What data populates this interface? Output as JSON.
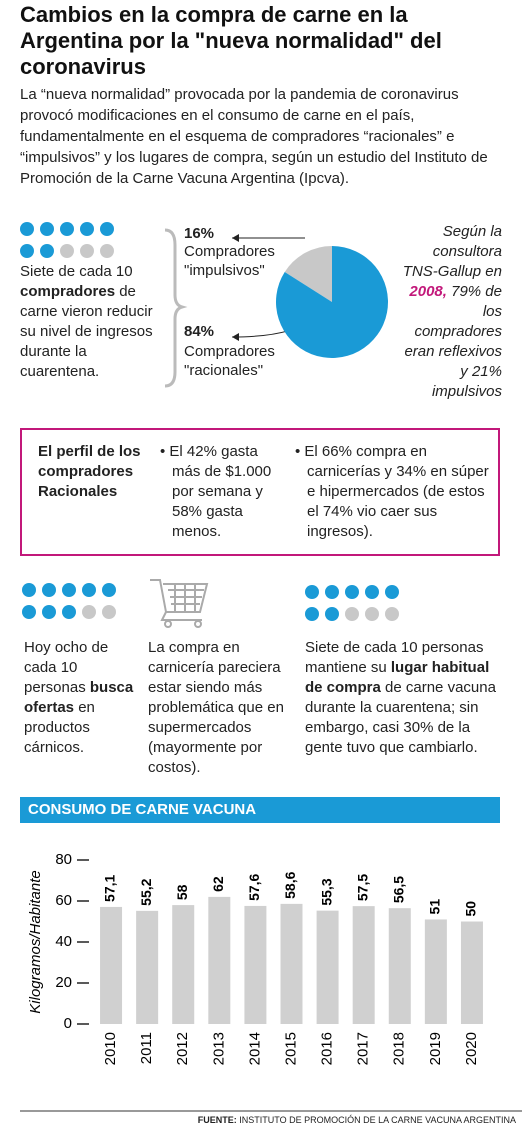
{
  "header": {
    "title": "Cambios en la compra de carne en la Argentina por la \"nueva normalidad\" del coronavirus",
    "intro": "La “nueva normalidad” provocada por la pandemia de coronavirus provocó modificaciones en el consumo de carne en el país, fundamentalmente en el esquema de compradores “racionales” e “impulsivos” y los lugares de compra, según un estudio del Instituto de Promoción de la Carne Vacuna Argentina (Ipcva)."
  },
  "section1": {
    "left": [
      "Siete de cada 10 ",
      "compradores",
      " de carne vieron reducir su nivel de ingresos durante la cuarentena."
    ],
    "note": [
      "Según la consultora TNS-Gallup en ",
      "2008,",
      " 79% de los compradores eran reflexivos y 21% impulsivos"
    ]
  },
  "profile": {
    "title": "El perfil de los compradores Racionales",
    "bullets": [
      "El 42% gasta más de $1.000 por semana y 58% gasta menos.",
      "El 66% compra en carnicerías y 34% en súper e hipermercados (de estos el 74% vio caer sus ingresos)."
    ]
  },
  "columns": [
    [
      "Hoy ocho de cada 10 personas ",
      "busca ofertas",
      " en productos cárnicos."
    ],
    [
      "La compra en carnicería pareciera estar siendo más problemática que en supermercados (mayormente por costos)."
    ],
    [
      "Siete de cada 10 personas mantiene su ",
      "lugar habitual de compra",
      " de carne vacuna durante la cuarentena; sin embargo, casi 30% de la gente tuvo que cambiarlo."
    ]
  ],
  "footer": [
    "FUENTE:",
    " INSTITUTO DE PROMOCIÓN DE LA CARNE VACUNA ARGENTINA"
  ],
  "chart_data": [
    {
      "type": "pie",
      "categories": [
        "Compradores \"impulsivos\"",
        "Compradores \"racionales\""
      ],
      "values": [
        16,
        84
      ],
      "value_labels": [
        "16%",
        "84%"
      ],
      "colors": [
        "#c8c8c8",
        "#1a9ad6"
      ]
    },
    {
      "type": "bar",
      "title": "CONSUMO DE CARNE VACUNA",
      "y_label": "Kilogramos/Habitante",
      "categories": [
        "2010",
        "2011",
        "2012",
        "2013",
        "2014",
        "2015",
        "2016",
        "2017",
        "2018",
        "2019",
        "2020"
      ],
      "values": [
        57.1,
        55.2,
        58,
        62,
        57.6,
        58.6,
        55.3,
        57.5,
        56.5,
        51,
        50
      ],
      "value_labels": [
        "57,1",
        "55,2",
        "58",
        "62",
        "57,6",
        "58,6",
        "55,3",
        "57,5",
        "56,5",
        "51",
        "50"
      ],
      "color": "#d0d0d0",
      "ylim": [
        0,
        80
      ],
      "yticks": [
        0,
        20,
        40,
        60,
        80
      ]
    }
  ]
}
